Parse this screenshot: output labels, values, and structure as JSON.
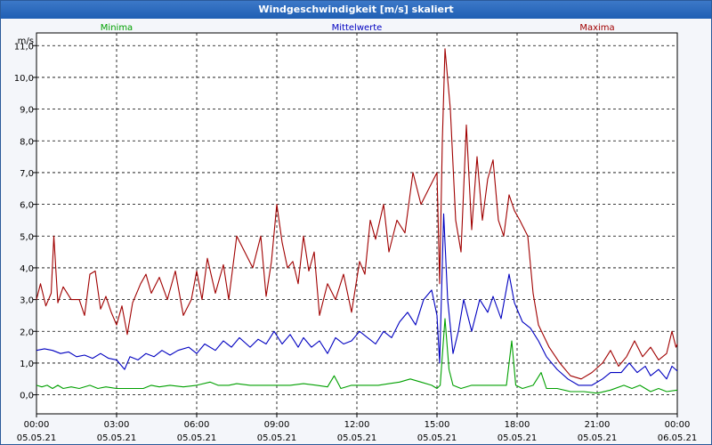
{
  "window_title": "Windgeschwindigkeit [m/s] skaliert",
  "chart_data": {
    "type": "line",
    "title": "Windgeschwindigkeit [m/s] skaliert",
    "ylabel": "m/s",
    "ylim": [
      -0.6,
      11.4
    ],
    "xlim_hours": [
      0,
      24
    ],
    "grid": true,
    "y_ticks": [
      "11,0",
      "10,0",
      "9,0",
      "8,0",
      "7,0",
      "6,0",
      "5,0",
      "4,0",
      "3,0",
      "2,0",
      "1,0",
      "0,0"
    ],
    "y_tick_values": [
      11,
      10,
      9,
      8,
      7,
      6,
      5,
      4,
      3,
      2,
      1,
      0
    ],
    "x_ticks": [
      {
        "time": "00:00",
        "date": "05.05.21"
      },
      {
        "time": "03:00",
        "date": "05.05.21"
      },
      {
        "time": "06:00",
        "date": "05.05.21"
      },
      {
        "time": "09:00",
        "date": "05.05.21"
      },
      {
        "time": "12:00",
        "date": "05.05.21"
      },
      {
        "time": "15:00",
        "date": "05.05.21"
      },
      {
        "time": "18:00",
        "date": "05.05.21"
      },
      {
        "time": "21:00",
        "date": "05.05.21"
      },
      {
        "time": "00:00",
        "date": "06.05.21"
      }
    ],
    "series": [
      {
        "name": "Minima",
        "color": "#00a000",
        "points": [
          [
            0.0,
            0.3
          ],
          [
            0.2,
            0.25
          ],
          [
            0.4,
            0.3
          ],
          [
            0.6,
            0.2
          ],
          [
            0.8,
            0.3
          ],
          [
            1.0,
            0.2
          ],
          [
            1.3,
            0.25
          ],
          [
            1.6,
            0.2
          ],
          [
            2.0,
            0.3
          ],
          [
            2.3,
            0.2
          ],
          [
            2.6,
            0.25
          ],
          [
            3.0,
            0.2
          ],
          [
            3.5,
            0.2
          ],
          [
            4.0,
            0.2
          ],
          [
            4.3,
            0.3
          ],
          [
            4.6,
            0.25
          ],
          [
            5.0,
            0.3
          ],
          [
            5.5,
            0.25
          ],
          [
            6.0,
            0.3
          ],
          [
            6.5,
            0.4
          ],
          [
            6.8,
            0.3
          ],
          [
            7.2,
            0.3
          ],
          [
            7.5,
            0.35
          ],
          [
            8.0,
            0.3
          ],
          [
            8.5,
            0.3
          ],
          [
            9.0,
            0.3
          ],
          [
            9.5,
            0.3
          ],
          [
            10.0,
            0.35
          ],
          [
            10.5,
            0.3
          ],
          [
            10.9,
            0.25
          ],
          [
            11.15,
            0.6
          ],
          [
            11.4,
            0.2
          ],
          [
            11.8,
            0.3
          ],
          [
            12.3,
            0.3
          ],
          [
            12.8,
            0.3
          ],
          [
            13.2,
            0.35
          ],
          [
            13.6,
            0.4
          ],
          [
            14.0,
            0.5
          ],
          [
            14.4,
            0.4
          ],
          [
            14.8,
            0.3
          ],
          [
            15.0,
            0.2
          ],
          [
            15.12,
            0.3
          ],
          [
            15.3,
            2.4
          ],
          [
            15.45,
            0.8
          ],
          [
            15.6,
            0.3
          ],
          [
            15.9,
            0.2
          ],
          [
            16.3,
            0.3
          ],
          [
            16.8,
            0.3
          ],
          [
            17.3,
            0.3
          ],
          [
            17.6,
            0.3
          ],
          [
            17.8,
            1.7
          ],
          [
            17.95,
            0.3
          ],
          [
            18.2,
            0.2
          ],
          [
            18.6,
            0.3
          ],
          [
            18.9,
            0.7
          ],
          [
            19.1,
            0.2
          ],
          [
            19.5,
            0.2
          ],
          [
            20.0,
            0.1
          ],
          [
            20.5,
            0.1
          ],
          [
            21.0,
            0.05
          ],
          [
            21.5,
            0.15
          ],
          [
            22.0,
            0.3
          ],
          [
            22.3,
            0.2
          ],
          [
            22.6,
            0.3
          ],
          [
            23.0,
            0.1
          ],
          [
            23.3,
            0.2
          ],
          [
            23.6,
            0.1
          ],
          [
            24.0,
            0.15
          ]
        ]
      },
      {
        "name": "Mittelwerte",
        "color": "#0000c0",
        "points": [
          [
            0.0,
            1.4
          ],
          [
            0.3,
            1.45
          ],
          [
            0.6,
            1.4
          ],
          [
            0.9,
            1.3
          ],
          [
            1.2,
            1.35
          ],
          [
            1.5,
            1.2
          ],
          [
            1.8,
            1.25
          ],
          [
            2.1,
            1.15
          ],
          [
            2.4,
            1.3
          ],
          [
            2.7,
            1.15
          ],
          [
            3.0,
            1.1
          ],
          [
            3.3,
            0.8
          ],
          [
            3.5,
            1.2
          ],
          [
            3.8,
            1.1
          ],
          [
            4.1,
            1.3
          ],
          [
            4.4,
            1.2
          ],
          [
            4.7,
            1.4
          ],
          [
            5.0,
            1.25
          ],
          [
            5.3,
            1.4
          ],
          [
            5.7,
            1.5
          ],
          [
            6.0,
            1.3
          ],
          [
            6.3,
            1.6
          ],
          [
            6.7,
            1.4
          ],
          [
            7.0,
            1.7
          ],
          [
            7.3,
            1.5
          ],
          [
            7.6,
            1.8
          ],
          [
            8.0,
            1.5
          ],
          [
            8.3,
            1.75
          ],
          [
            8.6,
            1.6
          ],
          [
            8.9,
            2.0
          ],
          [
            9.2,
            1.6
          ],
          [
            9.5,
            1.9
          ],
          [
            9.8,
            1.5
          ],
          [
            10.0,
            1.8
          ],
          [
            10.3,
            1.5
          ],
          [
            10.6,
            1.7
          ],
          [
            10.9,
            1.3
          ],
          [
            11.2,
            1.8
          ],
          [
            11.5,
            1.6
          ],
          [
            11.8,
            1.7
          ],
          [
            12.1,
            2.0
          ],
          [
            12.4,
            1.8
          ],
          [
            12.7,
            1.6
          ],
          [
            13.0,
            2.0
          ],
          [
            13.3,
            1.8
          ],
          [
            13.6,
            2.3
          ],
          [
            13.9,
            2.6
          ],
          [
            14.2,
            2.2
          ],
          [
            14.5,
            3.0
          ],
          [
            14.8,
            3.3
          ],
          [
            15.0,
            2.5
          ],
          [
            15.1,
            1.0
          ],
          [
            15.25,
            5.7
          ],
          [
            15.4,
            3.0
          ],
          [
            15.6,
            1.3
          ],
          [
            15.8,
            2.0
          ],
          [
            16.0,
            3.0
          ],
          [
            16.3,
            2.0
          ],
          [
            16.6,
            3.0
          ],
          [
            16.9,
            2.6
          ],
          [
            17.1,
            3.1
          ],
          [
            17.4,
            2.4
          ],
          [
            17.7,
            3.8
          ],
          [
            17.9,
            2.9
          ],
          [
            18.2,
            2.3
          ],
          [
            18.5,
            2.1
          ],
          [
            18.8,
            1.7
          ],
          [
            19.1,
            1.2
          ],
          [
            19.5,
            0.8
          ],
          [
            19.9,
            0.5
          ],
          [
            20.3,
            0.3
          ],
          [
            20.8,
            0.3
          ],
          [
            21.2,
            0.5
          ],
          [
            21.5,
            0.7
          ],
          [
            21.9,
            0.7
          ],
          [
            22.2,
            1.0
          ],
          [
            22.5,
            0.7
          ],
          [
            22.8,
            0.9
          ],
          [
            23.0,
            0.6
          ],
          [
            23.3,
            0.8
          ],
          [
            23.6,
            0.5
          ],
          [
            23.8,
            0.9
          ],
          [
            24.0,
            0.75
          ]
        ]
      },
      {
        "name": "Maxima",
        "color": "#a00000",
        "points": [
          [
            0.0,
            3.0
          ],
          [
            0.15,
            3.5
          ],
          [
            0.35,
            2.8
          ],
          [
            0.55,
            3.2
          ],
          [
            0.65,
            5.0
          ],
          [
            0.8,
            2.9
          ],
          [
            1.0,
            3.4
          ],
          [
            1.3,
            3.0
          ],
          [
            1.6,
            3.0
          ],
          [
            1.8,
            2.5
          ],
          [
            2.0,
            3.8
          ],
          [
            2.2,
            3.9
          ],
          [
            2.4,
            2.7
          ],
          [
            2.6,
            3.1
          ],
          [
            2.8,
            2.6
          ],
          [
            3.0,
            2.2
          ],
          [
            3.2,
            2.8
          ],
          [
            3.4,
            1.9
          ],
          [
            3.6,
            2.9
          ],
          [
            3.9,
            3.5
          ],
          [
            4.1,
            3.8
          ],
          [
            4.3,
            3.2
          ],
          [
            4.6,
            3.7
          ],
          [
            4.9,
            3.0
          ],
          [
            5.2,
            3.9
          ],
          [
            5.5,
            2.5
          ],
          [
            5.8,
            3.0
          ],
          [
            6.0,
            3.9
          ],
          [
            6.2,
            3.0
          ],
          [
            6.4,
            4.3
          ],
          [
            6.7,
            3.2
          ],
          [
            7.0,
            4.1
          ],
          [
            7.2,
            3.0
          ],
          [
            7.5,
            5.0
          ],
          [
            7.8,
            4.5
          ],
          [
            8.1,
            4.0
          ],
          [
            8.4,
            5.0
          ],
          [
            8.6,
            3.1
          ],
          [
            8.8,
            4.2
          ],
          [
            9.0,
            6.0
          ],
          [
            9.2,
            4.8
          ],
          [
            9.4,
            4.0
          ],
          [
            9.6,
            4.2
          ],
          [
            9.8,
            3.5
          ],
          [
            10.0,
            5.0
          ],
          [
            10.2,
            3.9
          ],
          [
            10.4,
            4.5
          ],
          [
            10.6,
            2.5
          ],
          [
            10.9,
            3.5
          ],
          [
            11.2,
            3.0
          ],
          [
            11.5,
            3.8
          ],
          [
            11.8,
            2.6
          ],
          [
            12.1,
            4.2
          ],
          [
            12.3,
            3.8
          ],
          [
            12.5,
            5.5
          ],
          [
            12.7,
            4.9
          ],
          [
            13.0,
            6.0
          ],
          [
            13.2,
            4.5
          ],
          [
            13.5,
            5.5
          ],
          [
            13.8,
            5.1
          ],
          [
            14.1,
            7.0
          ],
          [
            14.4,
            6.0
          ],
          [
            14.7,
            6.5
          ],
          [
            15.0,
            7.0
          ],
          [
            15.1,
            3.5
          ],
          [
            15.2,
            8.0
          ],
          [
            15.3,
            10.9
          ],
          [
            15.5,
            9.0
          ],
          [
            15.7,
            5.5
          ],
          [
            15.9,
            4.5
          ],
          [
            16.1,
            8.5
          ],
          [
            16.3,
            5.2
          ],
          [
            16.5,
            7.5
          ],
          [
            16.7,
            5.5
          ],
          [
            16.9,
            6.8
          ],
          [
            17.1,
            7.4
          ],
          [
            17.3,
            5.5
          ],
          [
            17.5,
            5.0
          ],
          [
            17.7,
            6.3
          ],
          [
            17.9,
            5.8
          ],
          [
            18.1,
            5.5
          ],
          [
            18.4,
            5.0
          ],
          [
            18.6,
            3.2
          ],
          [
            18.8,
            2.2
          ],
          [
            19.2,
            1.5
          ],
          [
            19.6,
            1.0
          ],
          [
            20.0,
            0.6
          ],
          [
            20.4,
            0.5
          ],
          [
            20.8,
            0.7
          ],
          [
            21.2,
            1.0
          ],
          [
            21.5,
            1.4
          ],
          [
            21.8,
            0.9
          ],
          [
            22.1,
            1.2
          ],
          [
            22.4,
            1.7
          ],
          [
            22.7,
            1.2
          ],
          [
            23.0,
            1.5
          ],
          [
            23.3,
            1.1
          ],
          [
            23.6,
            1.3
          ],
          [
            23.8,
            2.0
          ],
          [
            23.95,
            1.5
          ],
          [
            24.0,
            1.6
          ]
        ]
      }
    ]
  }
}
